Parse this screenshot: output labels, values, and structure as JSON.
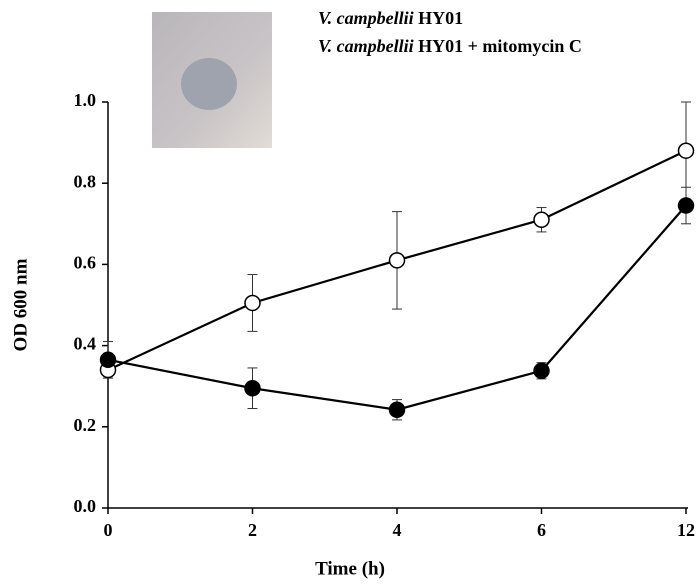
{
  "chart_data": {
    "type": "line",
    "xlabel": "Time (h)",
    "ylabel": "OD 600 nm",
    "categories": [
      "0",
      "2",
      "4",
      "6",
      "12"
    ],
    "series": [
      {
        "name": "V. campbellii HY01",
        "marker": "open",
        "color": "#000000",
        "values": [
          0.34,
          0.505,
          0.61,
          0.71,
          0.88
        ],
        "errors": [
          0.02,
          0.07,
          0.12,
          0.03,
          0.12
        ]
      },
      {
        "name": "V. campbellii HY01 + mitomycin C",
        "marker": "filled",
        "color": "#000000",
        "values": [
          0.365,
          0.295,
          0.242,
          0.338,
          0.745
        ],
        "errors": [
          0.045,
          0.05,
          0.025,
          0.02,
          0.045
        ]
      }
    ],
    "ylim": [
      0,
      1
    ],
    "yticks": [
      {
        "value": 0,
        "label": "0.0"
      },
      0.2,
      0.4,
      0.6,
      0.8,
      {
        "value": 1,
        "label": "1.0"
      }
    ],
    "legend_italic_words": 2
  }
}
